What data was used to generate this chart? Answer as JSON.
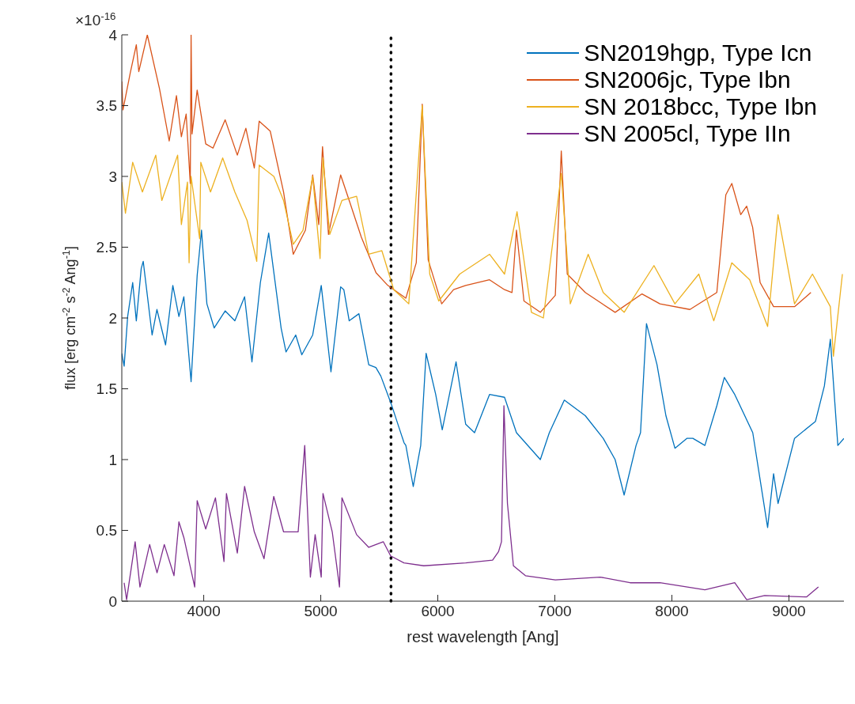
{
  "chart_data": {
    "type": "line",
    "xlabel": "rest wavelength [Ang]",
    "ylabel": "flux [erg cm$^{-2}$ s$^{-2}$ Ang$^{-1}$]",
    "annotations": [
      "×10$^{-16}$"
    ],
    "xlim": [
      3300,
      9470
    ],
    "xticks": [
      4000,
      5000,
      6000,
      7000,
      8000,
      9000
    ],
    "ylim": [
      0,
      4
    ],
    "yticks": [
      0,
      0.5,
      1,
      1.5,
      2,
      2.5,
      3,
      3.5,
      4
    ],
    "grid": false,
    "legend": "top right",
    "marker": "none",
    "line_style": "solid",
    "ref_lines": [
      {
        "axis": "x",
        "value": 5600,
        "label": null,
        "color": "#000000",
        "line_style": "dotted"
      }
    ],
    "series": [
      {
        "name": "SN2019hgp, Type Icn",
        "color": "#0072bd",
        "x": [
          3300,
          3320,
          3350,
          3393,
          3424,
          3466,
          3483,
          3559,
          3600,
          3674,
          3736,
          3788,
          3830,
          3892,
          3944,
          3981,
          4027,
          4089,
          4183,
          4266,
          4349,
          4412,
          4484,
          4555,
          4661,
          4703,
          4786,
          4838,
          4931,
          5004,
          5087,
          5170,
          5197,
          5243,
          5326,
          5410,
          5471,
          5513,
          5599,
          5711,
          5727,
          5790,
          5854,
          5900,
          5982,
          6038,
          6156,
          6238,
          6314,
          6442,
          6570,
          6672,
          6876,
          6953,
          7081,
          7260,
          7413,
          7515,
          7592,
          7694,
          7732,
          7783,
          7873,
          7949,
          8026,
          8128,
          8179,
          8282,
          8384,
          8448,
          8537,
          8691,
          8818,
          8869,
          8907,
          9048,
          9227,
          9303,
          9354,
          9418,
          9470
        ],
        "values": [
          1.75,
          1.66,
          2.01,
          2.25,
          1.98,
          2.35,
          2.4,
          1.88,
          2.06,
          1.81,
          2.23,
          2.01,
          2.15,
          1.55,
          2.3,
          2.62,
          2.1,
          1.93,
          2.05,
          1.98,
          2.15,
          1.69,
          2.25,
          2.6,
          1.93,
          1.76,
          1.88,
          1.74,
          1.88,
          2.23,
          1.62,
          2.22,
          2.2,
          1.98,
          2.03,
          1.67,
          1.65,
          1.59,
          1.4,
          1.12,
          1.1,
          0.81,
          1.1,
          1.75,
          1.46,
          1.21,
          1.69,
          1.25,
          1.19,
          1.46,
          1.44,
          1.19,
          1.0,
          1.19,
          1.42,
          1.31,
          1.15,
          1.0,
          0.75,
          1.1,
          1.19,
          1.96,
          1.67,
          1.31,
          1.08,
          1.15,
          1.15,
          1.1,
          1.38,
          1.58,
          1.46,
          1.19,
          0.52,
          0.9,
          0.69,
          1.15,
          1.27,
          1.52,
          1.85,
          1.1,
          1.15
        ]
      },
      {
        "name": "SN2006jc, Type Ibn",
        "color": "#d95319",
        "x": [
          3300,
          3310,
          3372,
          3424,
          3445,
          3518,
          3622,
          3705,
          3767,
          3809,
          3850,
          3885,
          3892,
          3900,
          3944,
          4017,
          4079,
          4183,
          4287,
          4360,
          4432,
          4474,
          4568,
          4682,
          4765,
          4869,
          4931,
          4983,
          5015,
          5066,
          5170,
          5243,
          5347,
          5472,
          5573,
          5727,
          5816,
          5867,
          5918,
          6033,
          6135,
          6238,
          6442,
          6570,
          6634,
          6672,
          6736,
          6876,
          7004,
          7055,
          7106,
          7260,
          7515,
          7745,
          7898,
          8154,
          8384,
          8461,
          8512,
          8588,
          8639,
          8690,
          8754,
          8869,
          9048,
          9188
        ],
        "values": [
          3.67,
          3.47,
          3.73,
          3.93,
          3.74,
          4.0,
          3.62,
          3.25,
          3.57,
          3.28,
          3.44,
          2.95,
          4.0,
          3.3,
          3.61,
          3.23,
          3.2,
          3.4,
          3.15,
          3.34,
          3.06,
          3.39,
          3.32,
          2.89,
          2.45,
          2.62,
          3.01,
          2.66,
          3.21,
          2.59,
          3.01,
          2.83,
          2.57,
          2.32,
          2.23,
          2.14,
          2.39,
          3.51,
          2.41,
          2.1,
          2.2,
          2.23,
          2.27,
          2.2,
          2.18,
          2.62,
          2.12,
          2.04,
          2.16,
          3.18,
          2.31,
          2.18,
          2.04,
          2.17,
          2.1,
          2.06,
          2.18,
          2.87,
          2.95,
          2.73,
          2.79,
          2.64,
          2.25,
          2.08,
          2.08,
          2.18
        ]
      },
      {
        "name": "SN 2018bcc, Type Ibn",
        "color": "#edb120",
        "x": [
          3300,
          3331,
          3393,
          3476,
          3590,
          3642,
          3777,
          3809,
          3861,
          3875,
          3892,
          3965,
          3975,
          4058,
          4162,
          4266,
          4370,
          4453,
          4474,
          4599,
          4682,
          4765,
          4848,
          4931,
          4994,
          5019,
          5077,
          5181,
          5306,
          5410,
          5522,
          5624,
          5752,
          5867,
          5931,
          6008,
          6187,
          6442,
          6570,
          6677,
          6800,
          6902,
          7055,
          7132,
          7285,
          7413,
          7592,
          7847,
          8026,
          8230,
          8358,
          8512,
          8665,
          8818,
          8907,
          9048,
          9201,
          9354,
          9380,
          9457
        ],
        "values": [
          2.96,
          2.74,
          3.1,
          2.89,
          3.15,
          2.83,
          3.15,
          2.66,
          2.96,
          2.39,
          3.0,
          2.56,
          3.1,
          2.89,
          3.13,
          2.89,
          2.69,
          2.4,
          3.08,
          3.0,
          2.83,
          2.52,
          2.62,
          3.0,
          2.42,
          3.13,
          2.59,
          2.83,
          2.86,
          2.45,
          2.475,
          2.2,
          2.1,
          3.5,
          2.31,
          2.12,
          2.31,
          2.45,
          2.31,
          2.75,
          2.04,
          2.0,
          3.02,
          2.1,
          2.45,
          2.18,
          2.04,
          2.37,
          2.1,
          2.31,
          1.98,
          2.39,
          2.27,
          1.94,
          2.73,
          2.1,
          2.31,
          2.08,
          1.73,
          2.31
        ]
      },
      {
        "name": "SN 2005cl, Type IIn",
        "color": "#7e2f8e",
        "x": [
          3320,
          3341,
          3414,
          3455,
          3538,
          3601,
          3663,
          3746,
          3788,
          3830,
          3923,
          3944,
          4017,
          4100,
          4173,
          4194,
          4287,
          4349,
          4432,
          4515,
          4598,
          4682,
          4807,
          4863,
          4911,
          4952,
          5004,
          5019,
          5098,
          5160,
          5181,
          5306,
          5410,
          5534,
          5597,
          5711,
          5880,
          6238,
          6468,
          6519,
          6544,
          6565,
          6595,
          6646,
          6749,
          7004,
          7388,
          7643,
          7898,
          8282,
          8537,
          8639,
          8792,
          9150,
          9252
        ],
        "values": [
          0.13,
          0.01,
          0.42,
          0.1,
          0.4,
          0.2,
          0.4,
          0.18,
          0.56,
          0.45,
          0.1,
          0.71,
          0.51,
          0.73,
          0.28,
          0.76,
          0.34,
          0.81,
          0.49,
          0.3,
          0.74,
          0.49,
          0.49,
          1.1,
          0.17,
          0.47,
          0.17,
          0.76,
          0.49,
          0.1,
          0.73,
          0.47,
          0.38,
          0.42,
          0.32,
          0.27,
          0.25,
          0.27,
          0.29,
          0.35,
          0.42,
          1.38,
          0.69,
          0.25,
          0.18,
          0.15,
          0.17,
          0.13,
          0.13,
          0.08,
          0.13,
          0.01,
          0.04,
          0.03,
          0.1
        ]
      }
    ]
  }
}
